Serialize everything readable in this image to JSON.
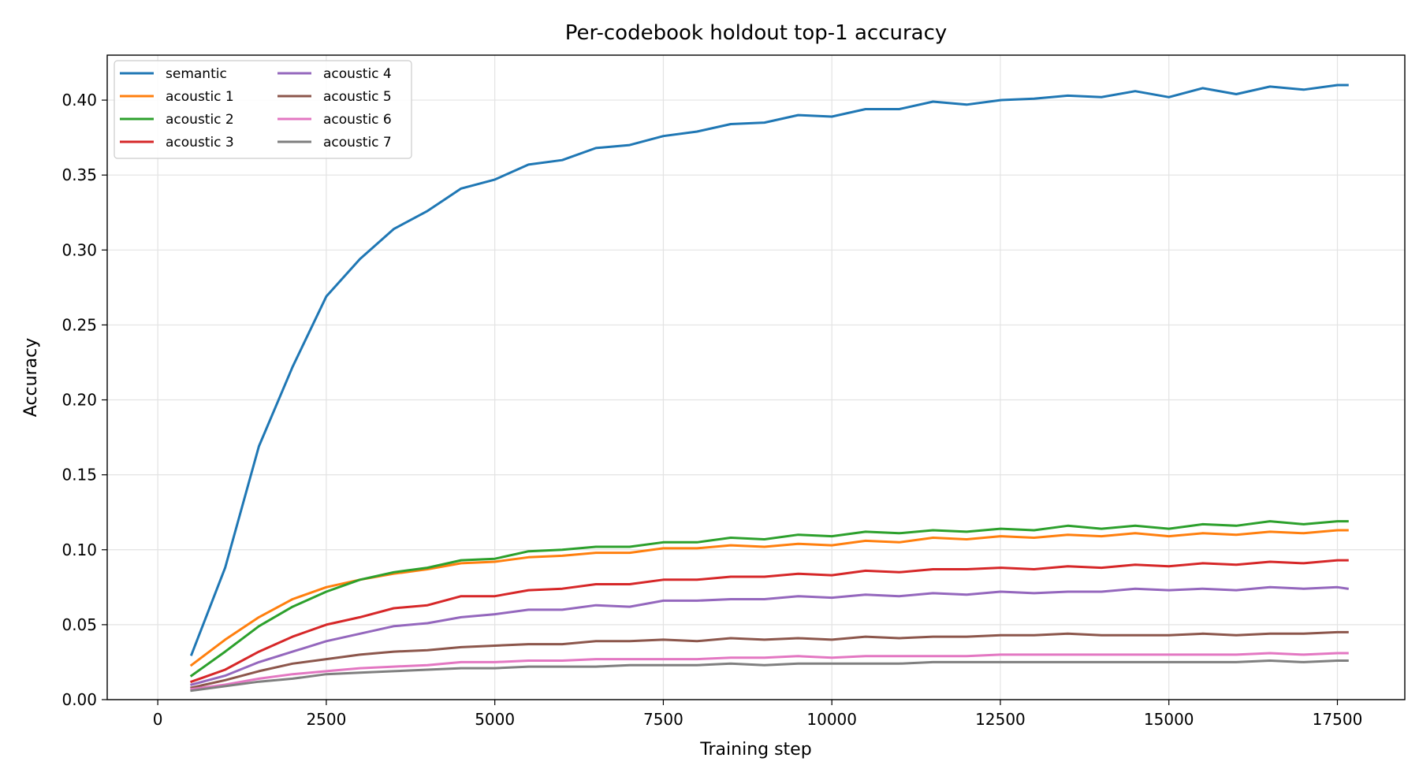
{
  "chart_data": {
    "type": "line",
    "title": "Per-codebook holdout top-1 accuracy",
    "xlabel": "Training step",
    "ylabel": "Accuracy",
    "xlim": [
      -750,
      18500
    ],
    "ylim": [
      0.0,
      0.43
    ],
    "xticks": [
      0,
      2500,
      5000,
      7500,
      10000,
      12500,
      15000,
      17500
    ],
    "yticks": [
      0.0,
      0.05,
      0.1,
      0.15,
      0.2,
      0.25,
      0.3,
      0.35,
      0.4
    ],
    "ytick_labels": [
      "0.00",
      "0.05",
      "0.10",
      "0.15",
      "0.20",
      "0.25",
      "0.30",
      "0.35",
      "0.40"
    ],
    "grid": true,
    "legend_position": "top-left",
    "legend_columns": 2,
    "x": [
      500,
      1000,
      1500,
      2000,
      2500,
      3000,
      3500,
      4000,
      4500,
      5000,
      5500,
      6000,
      6500,
      7000,
      7500,
      8000,
      8500,
      9000,
      9500,
      10000,
      10500,
      11000,
      11500,
      12000,
      12500,
      13000,
      13500,
      14000,
      14500,
      15000,
      15500,
      16000,
      16500,
      17000,
      17500,
      17650
    ],
    "series": [
      {
        "name": "semantic",
        "color": "#1f77b4",
        "values": [
          0.03,
          0.088,
          0.169,
          0.222,
          0.269,
          0.294,
          0.314,
          0.326,
          0.341,
          0.347,
          0.357,
          0.36,
          0.368,
          0.37,
          0.376,
          0.379,
          0.384,
          0.385,
          0.39,
          0.389,
          0.394,
          0.394,
          0.399,
          0.397,
          0.4,
          0.401,
          0.403,
          0.402,
          0.406,
          0.402,
          0.408,
          0.404,
          0.409,
          0.407,
          0.41,
          0.41
        ]
      },
      {
        "name": "acoustic 1",
        "color": "#ff7f0e",
        "values": [
          0.023,
          0.04,
          0.055,
          0.067,
          0.075,
          0.08,
          0.084,
          0.087,
          0.091,
          0.092,
          0.095,
          0.096,
          0.098,
          0.098,
          0.101,
          0.101,
          0.103,
          0.102,
          0.104,
          0.103,
          0.106,
          0.105,
          0.108,
          0.107,
          0.109,
          0.108,
          0.11,
          0.109,
          0.111,
          0.109,
          0.111,
          0.11,
          0.112,
          0.111,
          0.113,
          0.113
        ]
      },
      {
        "name": "acoustic 2",
        "color": "#2ca02c",
        "values": [
          0.016,
          0.032,
          0.049,
          0.062,
          0.072,
          0.08,
          0.085,
          0.088,
          0.093,
          0.094,
          0.099,
          0.1,
          0.102,
          0.102,
          0.105,
          0.105,
          0.108,
          0.107,
          0.11,
          0.109,
          0.112,
          0.111,
          0.113,
          0.112,
          0.114,
          0.113,
          0.116,
          0.114,
          0.116,
          0.114,
          0.117,
          0.116,
          0.119,
          0.117,
          0.119,
          0.119
        ]
      },
      {
        "name": "acoustic 3",
        "color": "#d62728",
        "values": [
          0.012,
          0.02,
          0.032,
          0.042,
          0.05,
          0.055,
          0.061,
          0.063,
          0.069,
          0.069,
          0.073,
          0.074,
          0.077,
          0.077,
          0.08,
          0.08,
          0.082,
          0.082,
          0.084,
          0.083,
          0.086,
          0.085,
          0.087,
          0.087,
          0.088,
          0.087,
          0.089,
          0.088,
          0.09,
          0.089,
          0.091,
          0.09,
          0.092,
          0.091,
          0.093,
          0.093
        ]
      },
      {
        "name": "acoustic 4",
        "color": "#9467bd",
        "values": [
          0.01,
          0.016,
          0.025,
          0.032,
          0.039,
          0.044,
          0.049,
          0.051,
          0.055,
          0.057,
          0.06,
          0.06,
          0.063,
          0.062,
          0.066,
          0.066,
          0.067,
          0.067,
          0.069,
          0.068,
          0.07,
          0.069,
          0.071,
          0.07,
          0.072,
          0.071,
          0.072,
          0.072,
          0.074,
          0.073,
          0.074,
          0.073,
          0.075,
          0.074,
          0.075,
          0.074
        ]
      },
      {
        "name": "acoustic 5",
        "color": "#8c564b",
        "values": [
          0.008,
          0.013,
          0.019,
          0.024,
          0.027,
          0.03,
          0.032,
          0.033,
          0.035,
          0.036,
          0.037,
          0.037,
          0.039,
          0.039,
          0.04,
          0.039,
          0.041,
          0.04,
          0.041,
          0.04,
          0.042,
          0.041,
          0.042,
          0.042,
          0.043,
          0.043,
          0.044,
          0.043,
          0.043,
          0.043,
          0.044,
          0.043,
          0.044,
          0.044,
          0.045,
          0.045
        ]
      },
      {
        "name": "acoustic 6",
        "color": "#e377c2",
        "values": [
          0.007,
          0.01,
          0.014,
          0.017,
          0.019,
          0.021,
          0.022,
          0.023,
          0.025,
          0.025,
          0.026,
          0.026,
          0.027,
          0.027,
          0.027,
          0.027,
          0.028,
          0.028,
          0.029,
          0.028,
          0.029,
          0.029,
          0.029,
          0.029,
          0.03,
          0.03,
          0.03,
          0.03,
          0.03,
          0.03,
          0.03,
          0.03,
          0.031,
          0.03,
          0.031,
          0.031
        ]
      },
      {
        "name": "acoustic 7",
        "color": "#7f7f7f",
        "values": [
          0.006,
          0.009,
          0.012,
          0.014,
          0.017,
          0.018,
          0.019,
          0.02,
          0.021,
          0.021,
          0.022,
          0.022,
          0.022,
          0.023,
          0.023,
          0.023,
          0.024,
          0.023,
          0.024,
          0.024,
          0.024,
          0.024,
          0.025,
          0.025,
          0.025,
          0.025,
          0.025,
          0.025,
          0.025,
          0.025,
          0.025,
          0.025,
          0.026,
          0.025,
          0.026,
          0.026
        ]
      }
    ]
  }
}
